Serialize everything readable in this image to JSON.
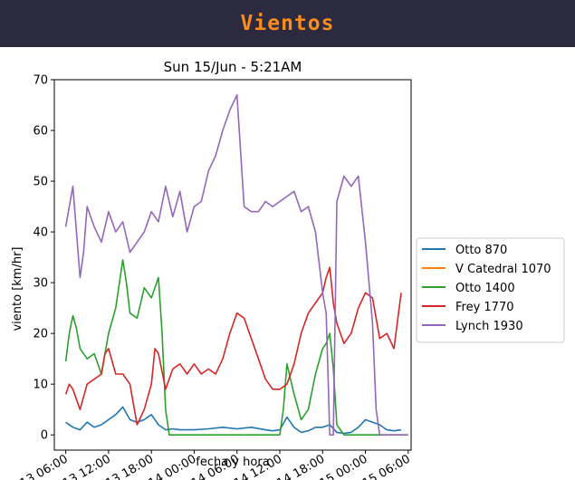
{
  "header": {
    "title": "Vientos"
  },
  "chart_data": {
    "type": "line",
    "title": "Sun 15/Jun - 5:21AM",
    "xlabel": "fecha y hora",
    "ylabel": "viento [km/hr]",
    "ylim": [
      -3,
      70
    ],
    "yticks": [
      0,
      10,
      20,
      30,
      40,
      50,
      60,
      70
    ],
    "xlim": [
      -1.6,
      48.4
    ],
    "x_unit": "hours from 13 06:00",
    "xticks": [
      {
        "x": 0,
        "label": "13 06:00"
      },
      {
        "x": 6,
        "label": "13 12:00"
      },
      {
        "x": 12,
        "label": "13 18:00"
      },
      {
        "x": 18,
        "label": "14 00:00"
      },
      {
        "x": 24,
        "label": "14 06:00"
      },
      {
        "x": 30,
        "label": "14 12:00"
      },
      {
        "x": 36,
        "label": "14 18:00"
      },
      {
        "x": 42,
        "label": "15 00:00"
      },
      {
        "x": 48,
        "label": "15 06:00"
      }
    ],
    "grid": false,
    "legend_position": "right",
    "series": [
      {
        "name": "Otto 870",
        "color": "#1f77b4",
        "x": [
          0,
          1,
          2,
          3,
          4,
          5,
          6,
          7,
          8,
          9,
          10,
          11,
          12,
          13,
          14,
          15,
          16,
          18,
          20,
          22,
          24,
          26,
          28,
          29,
          30,
          31,
          32,
          33,
          34,
          35,
          36,
          37,
          38,
          39,
          40,
          41,
          42,
          43,
          44,
          45,
          46,
          47
        ],
        "y": [
          2.5,
          1.5,
          1.0,
          2.5,
          1.5,
          2.0,
          3.0,
          4.0,
          5.5,
          3.0,
          2.5,
          3.0,
          4.0,
          2.0,
          1.0,
          1.2,
          1.0,
          1.0,
          1.2,
          1.5,
          1.2,
          1.5,
          1.0,
          0.8,
          1.0,
          3.5,
          1.5,
          0.5,
          0.8,
          1.5,
          1.5,
          2.0,
          0.5,
          0.3,
          0.5,
          1.5,
          3.0,
          2.5,
          2.0,
          1.0,
          0.8,
          1.0
        ]
      },
      {
        "name": "V Catedral 1070",
        "color": "#ff7f0e",
        "x": [],
        "y": []
      },
      {
        "name": "Otto 1400",
        "color": "#2ca02c",
        "x": [
          0,
          0.5,
          1,
          1.5,
          2,
          3,
          4,
          5,
          6,
          7,
          8,
          8.5,
          9,
          10,
          11,
          12,
          13,
          13.5,
          14,
          14.5,
          16,
          20,
          24,
          28,
          30,
          30.5,
          31,
          32,
          33,
          34,
          35,
          36,
          36.5,
          37,
          37.5,
          38,
          39,
          40,
          41,
          48
        ],
        "y": [
          14.5,
          20,
          23.5,
          21,
          17,
          15,
          16,
          12,
          20,
          25,
          34.5,
          30,
          24,
          23,
          29,
          27,
          31,
          20,
          5,
          0,
          0,
          0,
          0,
          0,
          0,
          5,
          14,
          8,
          3,
          5,
          12,
          17,
          18,
          20,
          13,
          2,
          0,
          0,
          0,
          0
        ]
      },
      {
        "name": "Frey 1770",
        "color": "#d62728",
        "x": [
          0,
          0.5,
          1,
          2,
          3,
          4,
          5,
          5.5,
          6,
          7,
          8,
          9,
          10,
          11,
          12,
          12.5,
          13,
          14,
          15,
          16,
          17,
          18,
          19,
          20,
          21,
          22,
          23,
          24,
          25,
          26,
          27,
          28,
          29,
          30,
          31,
          32,
          33,
          34,
          35,
          36,
          36.5,
          37,
          37.5,
          38,
          39,
          40,
          41,
          42,
          43,
          44,
          45,
          46,
          47
        ],
        "y": [
          8,
          10,
          9,
          5,
          10,
          11,
          12,
          16,
          17,
          12,
          12,
          10,
          2,
          5,
          10,
          17,
          16,
          9,
          13,
          14,
          12,
          14,
          12,
          13,
          12,
          15,
          20,
          24,
          23,
          19,
          15,
          11,
          9,
          9,
          10,
          14,
          20,
          24,
          26,
          28,
          31,
          33,
          26,
          22,
          18,
          20,
          25,
          28,
          27,
          19,
          20,
          17,
          28
        ]
      },
      {
        "name": "Lynch 1930",
        "color": "#9467bd",
        "x": [
          0,
          0.5,
          1,
          2,
          2.5,
          3,
          4,
          5,
          6,
          7,
          8,
          9,
          10,
          11,
          12,
          13,
          14,
          15,
          16,
          17,
          18,
          19,
          20,
          21,
          22,
          23,
          24,
          25,
          26,
          27,
          28,
          29,
          30,
          31,
          32,
          33,
          34,
          35,
          36,
          36.5,
          37,
          37.5,
          38,
          39,
          40,
          41,
          42,
          43,
          43.5,
          44,
          48
        ],
        "y": [
          41,
          45,
          49,
          31,
          36,
          45,
          41,
          38,
          44,
          40,
          42,
          36,
          38,
          40,
          44,
          42,
          49,
          43,
          48,
          40,
          45,
          46,
          52,
          55,
          60,
          64,
          67,
          45,
          44,
          44,
          46,
          45,
          46,
          47,
          48,
          44,
          45,
          40,
          28,
          24,
          0,
          0,
          46,
          51,
          49,
          51,
          38,
          22,
          5,
          0,
          0
        ]
      }
    ]
  }
}
